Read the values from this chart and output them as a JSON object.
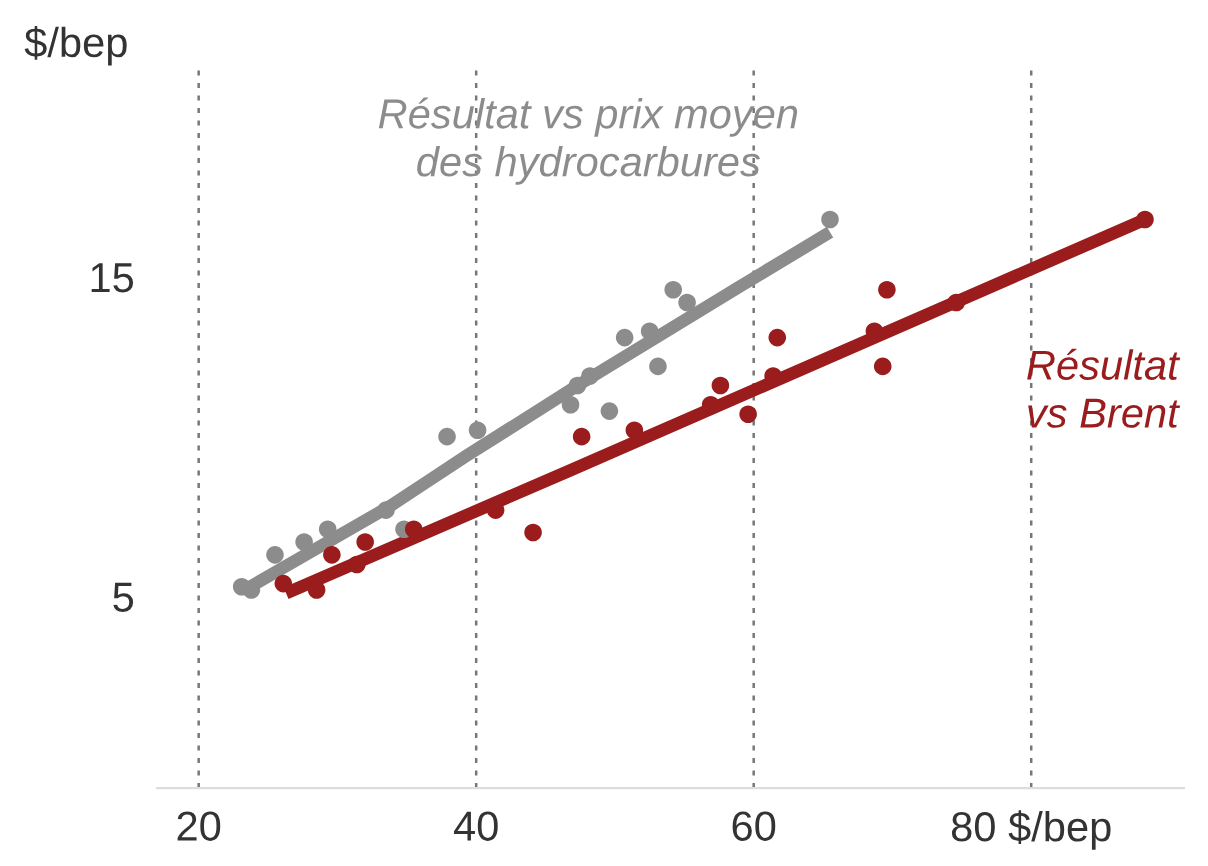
{
  "chart_data": {
    "type": "scatter",
    "ylabel": "$/bep",
    "xlim": [
      17,
      91
    ],
    "ylim": [
      -1,
      21.5
    ],
    "xticks": [
      20,
      40,
      60,
      {
        "value": 80,
        "label": "80 $/bep"
      }
    ],
    "yticks": [
      5,
      15
    ],
    "grid": "x",
    "series": [
      {
        "marker": "circle",
        "color": "#8c8c8c",
        "x": [
          23.1,
          23.8,
          25.5,
          27.6,
          29.3,
          33.5,
          34.8,
          37.9,
          40.1,
          46.8,
          47.3,
          48.2,
          49.6,
          50.7,
          52.5,
          53.1,
          54.2,
          55.2,
          65.5
        ],
        "values": [
          5.3,
          5.2,
          6.3,
          6.7,
          7.1,
          7.7,
          7.1,
          10.0,
          10.2,
          11.0,
          11.6,
          11.9,
          10.8,
          13.1,
          13.3,
          12.2,
          14.6,
          14.2,
          16.8
        ]
      },
      {
        "marker": "circle",
        "color": "#9b1c1c",
        "x": [
          26.1,
          28.5,
          29.6,
          31.4,
          32.0,
          35.5,
          41.4,
          44.1,
          47.6,
          51.4,
          56.9,
          57.6,
          59.6,
          61.4,
          61.7,
          68.7,
          69.3,
          69.6,
          74.6,
          88.2
        ],
        "values": [
          5.4,
          5.2,
          6.3,
          6.0,
          6.7,
          7.1,
          7.7,
          7.0,
          10.0,
          10.2,
          11.0,
          11.6,
          10.7,
          11.9,
          13.1,
          13.3,
          12.2,
          14.6,
          14.2,
          16.8
        ]
      },
      {
        "type": "line",
        "name": "Résultat vs prix moyen\ndes hydrocarbures",
        "color": "#8c8c8c",
        "line_style": "solid",
        "marker": "none",
        "x": [
          23.5,
          33.7,
          36.5,
          39.3,
          47.3,
          59.0,
          65.5
        ],
        "values": [
          5.25,
          7.8,
          8.6,
          9.4,
          11.6,
          14.7,
          16.4
        ]
      },
      {
        "type": "line",
        "name": "Résultat\nvs Brent",
        "color": "#9b1c1c",
        "line_style": "solid",
        "marker": "none",
        "x": [
          26.3,
          46.8,
          88.2
        ],
        "values": [
          5.1,
          8.95,
          16.8
        ]
      }
    ]
  }
}
